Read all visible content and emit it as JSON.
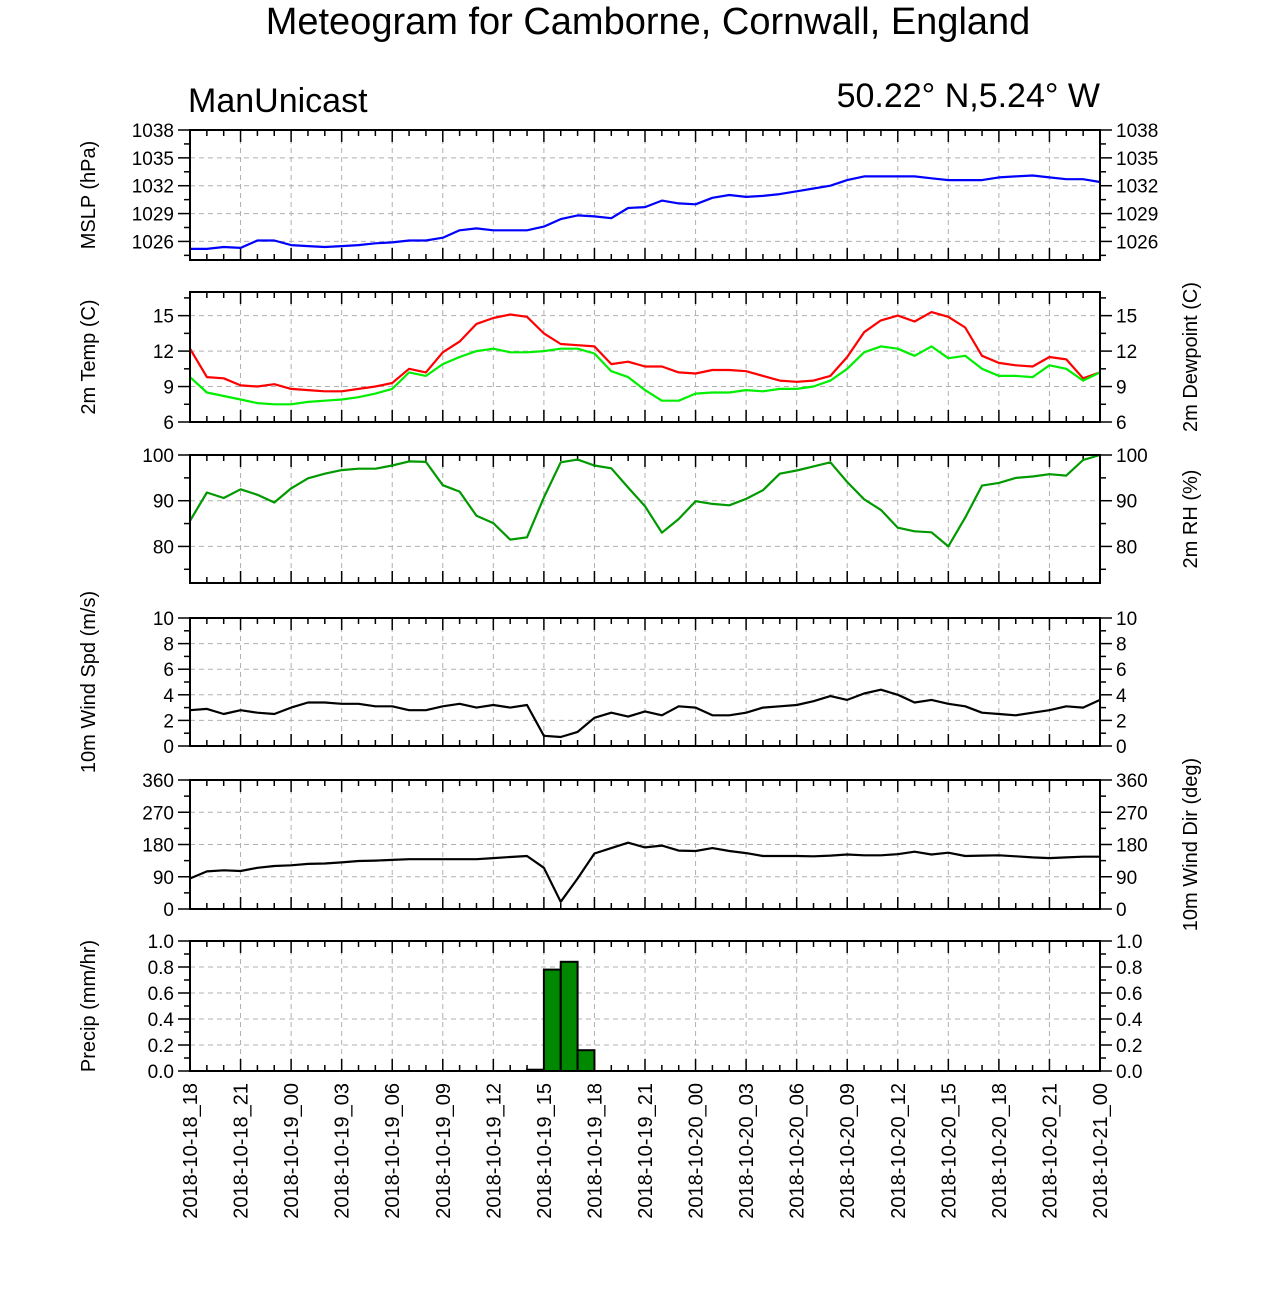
{
  "title": "Meteogram for Camborne, Cornwall, England",
  "model": "ManUnicast",
  "location": "50.22° N,5.24° W",
  "x_labels": [
    "2018-10-18_18",
    "2018-10-18_21",
    "2018-10-19_00",
    "2018-10-19_03",
    "2018-10-19_06",
    "2018-10-19_09",
    "2018-10-19_12",
    "2018-10-19_15",
    "2018-10-19_18",
    "2018-10-19_21",
    "2018-10-20_00",
    "2018-10-20_03",
    "2018-10-20_06",
    "2018-10-20_09",
    "2018-10-20_12",
    "2018-10-20_15",
    "2018-10-20_18",
    "2018-10-20_21",
    "2018-10-21_00"
  ],
  "colors": {
    "mslp": "#0000ff",
    "temp": "#ff0000",
    "dewpoint": "#00ee00",
    "rh": "#009900",
    "wind": "#000000",
    "precip": "#008800",
    "grid": "#b0b0b0"
  },
  "chart_data": [
    {
      "type": "line",
      "ylabel_left": "MSLP (hPa)",
      "ylim": [
        1024,
        1038
      ],
      "yticks": [
        1026,
        1029,
        1032,
        1035,
        1038
      ],
      "x_hours": [
        0,
        1,
        2,
        3,
        4,
        5,
        6,
        7,
        8,
        9,
        10,
        11,
        12,
        13,
        14,
        15,
        16,
        17,
        18,
        19,
        20,
        21,
        22,
        23,
        24,
        25,
        26,
        27,
        28,
        29,
        30,
        31,
        32,
        33,
        34,
        35,
        36,
        37,
        38,
        39,
        40,
        41,
        42,
        43,
        44,
        45,
        46,
        47,
        48,
        49,
        50,
        51,
        52,
        53,
        54
      ],
      "series": [
        {
          "key": "mslp",
          "values": [
            1025.2,
            1025.2,
            1025.4,
            1025.3,
            1026.1,
            1026.1,
            1025.6,
            1025.5,
            1025.4,
            1025.5,
            1025.6,
            1025.8,
            1025.9,
            1026.1,
            1026.1,
            1026.4,
            1027.2,
            1027.4,
            1027.2,
            1027.2,
            1027.2,
            1027.6,
            1028.4,
            1028.8,
            1028.7,
            1028.5,
            1029.6,
            1029.7,
            1030.4,
            1030.1,
            1030.0,
            1030.7,
            1031.0,
            1030.8,
            1030.9,
            1031.1,
            1031.4,
            1031.7,
            1032.0,
            1032.6,
            1033.0,
            1033.0,
            1033.0,
            1033.0,
            1032.8,
            1032.6,
            1032.6,
            1032.6,
            1032.9,
            1033.0,
            1033.1,
            1032.9,
            1032.7,
            1032.7,
            1032.4
          ]
        }
      ]
    },
    {
      "type": "line",
      "ylabel_left": "2m Temp (C)",
      "ylabel_right": "2m Dewpoint (C)",
      "ylim": [
        6,
        17
      ],
      "yticks": [
        6,
        9,
        12,
        15
      ],
      "x_hours": [
        0,
        1,
        2,
        3,
        4,
        5,
        6,
        7,
        8,
        9,
        10,
        11,
        12,
        13,
        14,
        15,
        16,
        17,
        18,
        19,
        20,
        21,
        22,
        23,
        24,
        25,
        26,
        27,
        28,
        29,
        30,
        31,
        32,
        33,
        34,
        35,
        36,
        37,
        38,
        39,
        40,
        41,
        42,
        43,
        44,
        45,
        46,
        47,
        48,
        49,
        50,
        51,
        52,
        53,
        54
      ],
      "series": [
        {
          "key": "temp",
          "values": [
            12.2,
            9.8,
            9.7,
            9.1,
            9.0,
            9.2,
            8.8,
            8.7,
            8.6,
            8.6,
            8.8,
            9.0,
            9.3,
            10.5,
            10.2,
            11.9,
            12.8,
            14.3,
            14.8,
            15.1,
            14.9,
            13.5,
            12.6,
            12.5,
            12.4,
            10.9,
            11.1,
            10.7,
            10.7,
            10.2,
            10.1,
            10.4,
            10.4,
            10.3,
            9.9,
            9.5,
            9.4,
            9.5,
            9.9,
            11.5,
            13.6,
            14.6,
            15.0,
            14.5,
            15.3,
            14.9,
            14.0,
            11.6,
            11.0,
            10.8,
            10.7,
            11.5,
            11.3,
            9.7,
            10.2
          ]
        },
        {
          "key": "dewpoint",
          "values": [
            9.8,
            8.5,
            8.2,
            7.9,
            7.6,
            7.5,
            7.5,
            7.7,
            7.8,
            7.9,
            8.1,
            8.4,
            8.8,
            10.2,
            9.9,
            10.9,
            11.5,
            12.0,
            12.2,
            11.9,
            11.9,
            12.0,
            12.2,
            12.2,
            11.8,
            10.3,
            9.8,
            8.7,
            7.8,
            7.8,
            8.4,
            8.5,
            8.5,
            8.7,
            8.6,
            8.8,
            8.8,
            9.0,
            9.5,
            10.5,
            11.9,
            12.4,
            12.2,
            11.6,
            12.4,
            11.4,
            11.6,
            10.5,
            9.9,
            9.9,
            9.8,
            10.8,
            10.5,
            9.5,
            10.2
          ]
        }
      ]
    },
    {
      "type": "line",
      "ylabel_right": "2m RH (%)",
      "ylim": [
        72,
        100
      ],
      "yticks": [
        80,
        90,
        100
      ],
      "x_hours": [
        0,
        1,
        2,
        3,
        4,
        5,
        6,
        7,
        8,
        9,
        10,
        11,
        12,
        13,
        14,
        15,
        16,
        17,
        18,
        19,
        20,
        21,
        22,
        23,
        24,
        25,
        26,
        27,
        28,
        29,
        30,
        31,
        32,
        33,
        34,
        35,
        36,
        37,
        38,
        39,
        40,
        41,
        42,
        43,
        44,
        45,
        46,
        47,
        48,
        49,
        50,
        51,
        52,
        53,
        54
      ],
      "series": [
        {
          "key": "rh",
          "values": [
            85.6,
            91.8,
            90.6,
            92.5,
            91.3,
            89.6,
            92.7,
            94.9,
            95.9,
            96.7,
            97.0,
            97.0,
            97.7,
            98.6,
            98.5,
            93.4,
            92.0,
            86.7,
            85.1,
            81.5,
            82.0,
            90.7,
            98.4,
            99.0,
            97.7,
            97.1,
            92.9,
            88.8,
            83.0,
            86.0,
            89.9,
            89.3,
            89.0,
            90.4,
            92.3,
            95.9,
            96.6,
            97.5,
            98.4,
            94.1,
            90.3,
            88.0,
            84.1,
            83.3,
            83.1,
            80.0,
            86.3,
            93.3,
            93.9,
            95.0,
            95.3,
            95.8,
            95.5,
            98.9,
            100
          ]
        }
      ]
    },
    {
      "type": "line",
      "ylabel_left": "10m Wind Spd (m/s)",
      "ylim": [
        0,
        10
      ],
      "yticks": [
        0,
        2,
        4,
        6,
        8,
        10
      ],
      "x_hours": [
        0,
        1,
        2,
        3,
        4,
        5,
        6,
        7,
        8,
        9,
        10,
        11,
        12,
        13,
        14,
        15,
        16,
        17,
        18,
        19,
        20,
        21,
        22,
        23,
        24,
        25,
        26,
        27,
        28,
        29,
        30,
        31,
        32,
        33,
        34,
        35,
        36,
        37,
        38,
        39,
        40,
        41,
        42,
        43,
        44,
        45,
        46,
        47,
        48,
        49,
        50,
        51,
        52,
        53,
        54
      ],
      "series": [
        {
          "key": "wind",
          "values": [
            2.8,
            2.9,
            2.5,
            2.8,
            2.6,
            2.5,
            3.0,
            3.4,
            3.4,
            3.3,
            3.3,
            3.1,
            3.1,
            2.8,
            2.8,
            3.1,
            3.3,
            3.0,
            3.2,
            3.0,
            3.2,
            0.8,
            0.7,
            1.1,
            2.2,
            2.6,
            2.3,
            2.7,
            2.4,
            3.1,
            3.0,
            2.4,
            2.4,
            2.6,
            3.0,
            3.1,
            3.2,
            3.5,
            3.9,
            3.6,
            4.1,
            4.4,
            4.0,
            3.4,
            3.6,
            3.3,
            3.1,
            2.6,
            2.5,
            2.4,
            2.6,
            2.8,
            3.1,
            3.0,
            3.6
          ]
        }
      ]
    },
    {
      "type": "line",
      "ylabel_right": "10m Wind Dir (deg)",
      "ylim": [
        0,
        360
      ],
      "yticks": [
        0,
        90,
        180,
        270,
        360
      ],
      "x_hours": [
        0,
        1,
        2,
        3,
        4,
        5,
        6,
        7,
        8,
        9,
        10,
        11,
        12,
        13,
        14,
        15,
        16,
        17,
        18,
        19,
        20,
        21,
        22,
        23,
        24,
        25,
        26,
        27,
        28,
        29,
        30,
        31,
        32,
        33,
        34,
        35,
        36,
        37,
        38,
        39,
        40,
        41,
        42,
        43,
        44,
        45,
        46,
        47,
        48,
        49,
        50,
        51,
        52,
        53,
        54
      ],
      "series": [
        {
          "key": "wind_dir",
          "values": [
            85,
            105,
            108,
            106,
            115,
            120,
            122,
            126,
            127,
            130,
            134,
            135,
            137,
            139,
            139,
            139,
            139,
            139,
            142,
            145,
            148,
            115,
            20,
            85,
            155,
            170,
            185,
            172,
            177,
            163,
            162,
            170,
            162,
            156,
            148,
            148,
            148,
            147,
            149,
            152,
            150,
            150,
            153,
            160,
            152,
            157,
            148,
            149,
            150,
            147,
            144,
            142,
            144,
            146,
            146
          ]
        }
      ]
    },
    {
      "type": "bar",
      "ylabel_left": "Precip (mm/hr)",
      "ylim": [
        0,
        1
      ],
      "yticks": [
        0.0,
        0.2,
        0.4,
        0.6,
        0.8,
        1.0
      ],
      "bar_hours": [
        20,
        21,
        22,
        23
      ],
      "values": [
        0.01,
        0.78,
        0.84,
        0.16
      ]
    }
  ]
}
